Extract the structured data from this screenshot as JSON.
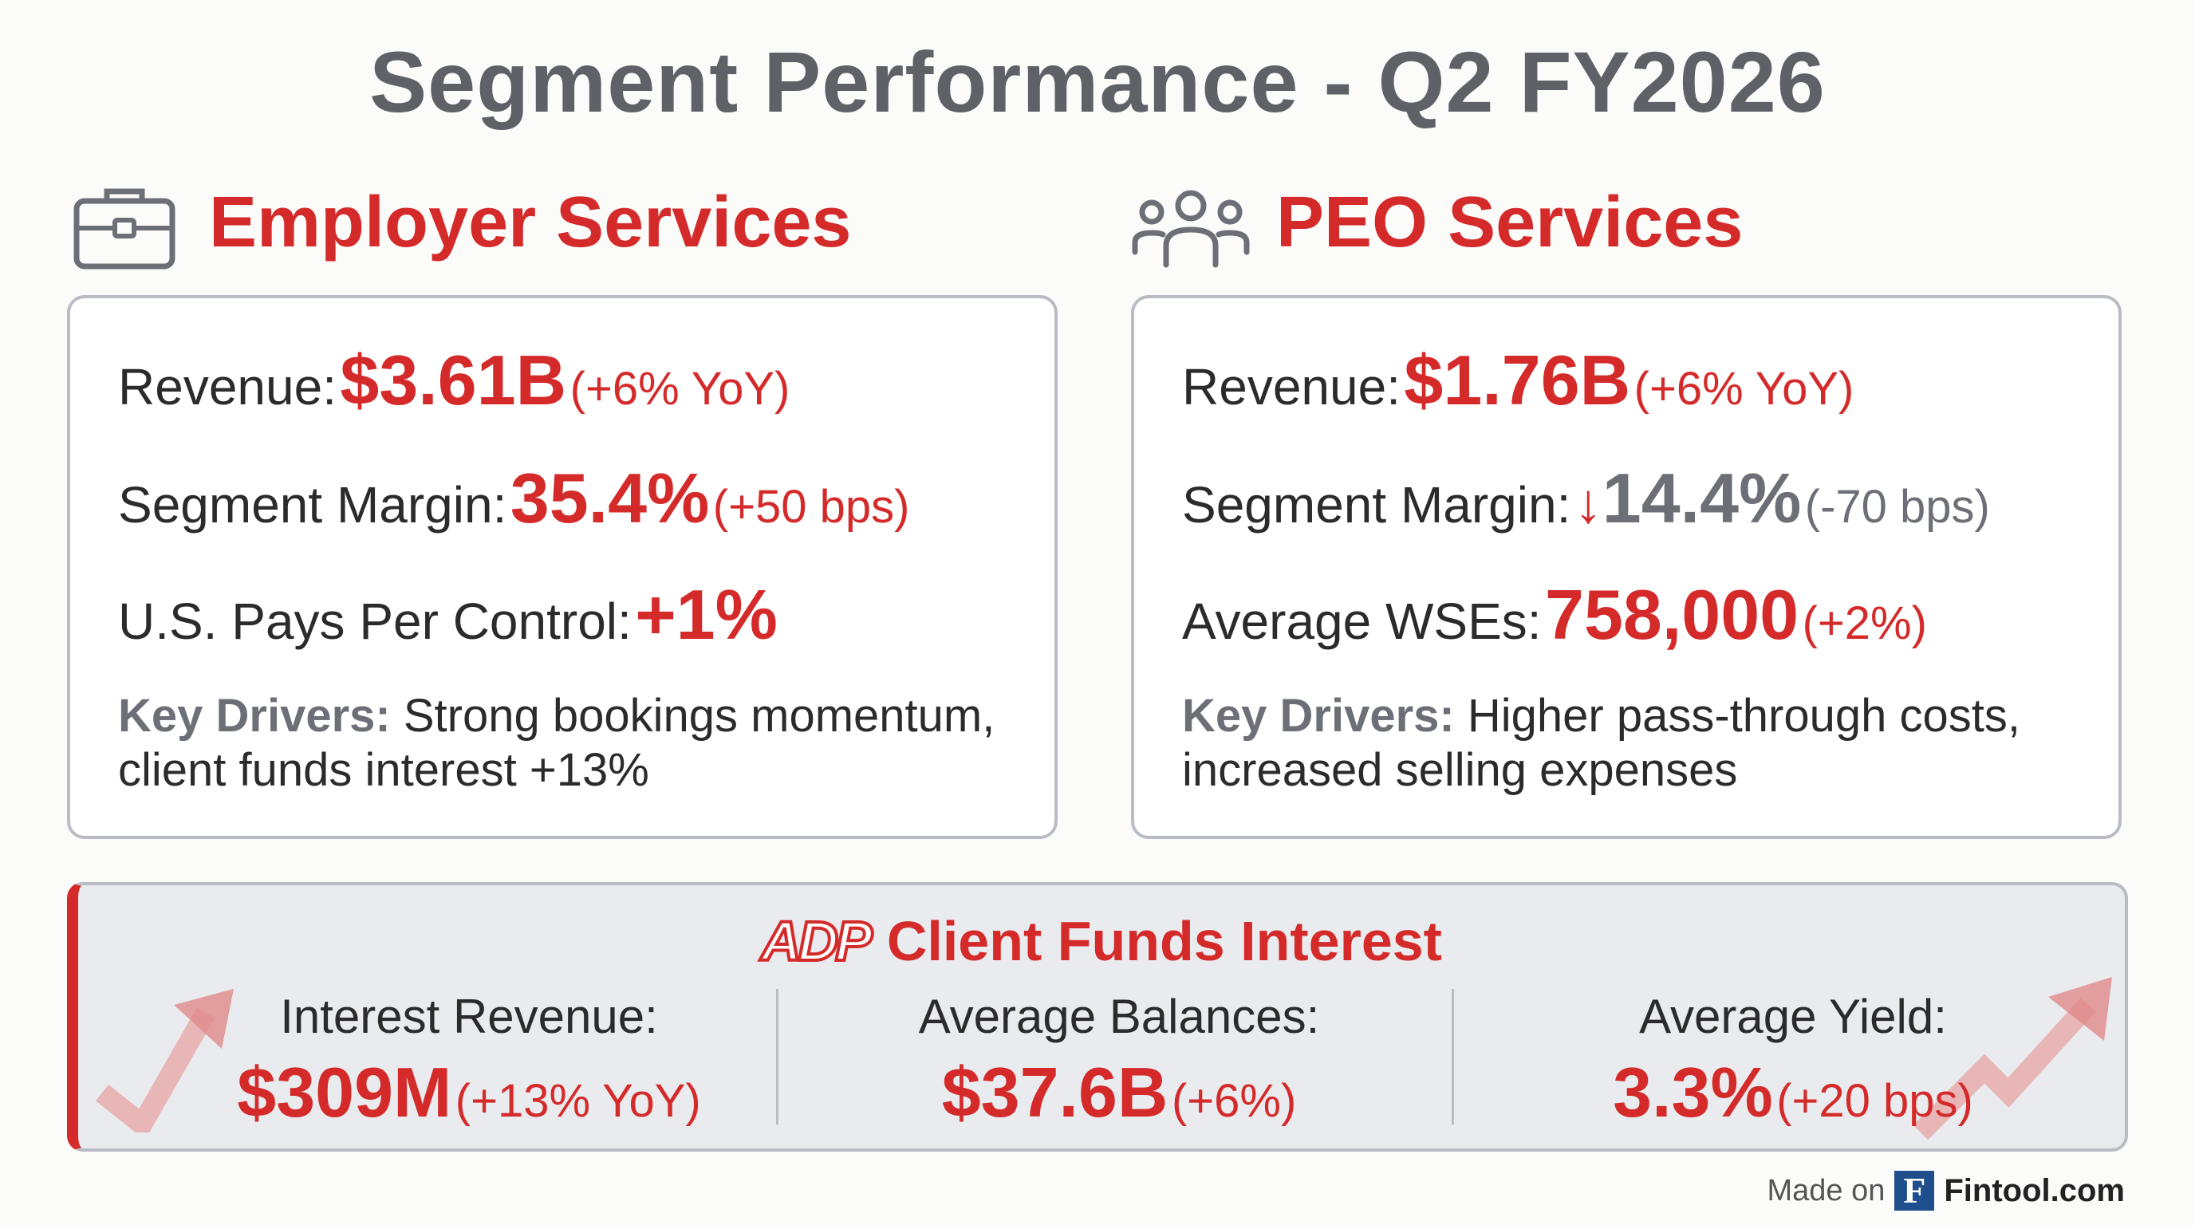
{
  "title": "Segment Performance - Q2 FY2026",
  "colors": {
    "accent": "#d42a2a",
    "muted": "#6c7076",
    "panel": "#e9ebee",
    "border": "#b9bdc3"
  },
  "employer": {
    "icon": "briefcase-icon",
    "title": "Employer Services",
    "revenue": {
      "label": "Revenue:",
      "value": "$3.61B",
      "change": "(+6% YoY)"
    },
    "margin": {
      "label": "Segment Margin:",
      "value": "35.4%",
      "change": "(+50 bps)"
    },
    "pays": {
      "label": "U.S. Pays Per Control:",
      "value": "+1%"
    },
    "drivers": {
      "label": "Key Drivers:",
      "text": " Strong bookings momentum, client funds interest +13%"
    }
  },
  "peo": {
    "icon": "users-icon",
    "title": "PEO Services",
    "revenue": {
      "label": "Revenue:",
      "value": "$1.76B",
      "change": "(+6% YoY)"
    },
    "margin": {
      "label": "Segment Margin:",
      "arrow": "↓",
      "value": "14.4%",
      "change": "(-70 bps)"
    },
    "wse": {
      "label": "Average WSEs:",
      "value": "758,000",
      "change": "(+2%)"
    },
    "drivers": {
      "label": "Key Drivers:",
      "text": " Higher pass-through costs, increased selling expenses"
    }
  },
  "client_funds": {
    "logo": "ADP",
    "title": "Client Funds Interest",
    "metrics": [
      {
        "label": "Interest Revenue:",
        "value": "$309M",
        "change": "(+13% YoY)"
      },
      {
        "label": "Average Balances:",
        "value": "$37.6B",
        "change": "(+6%)"
      },
      {
        "label": "Average Yield:",
        "value": "3.3%",
        "change": "(+20 bps)"
      }
    ]
  },
  "footer": {
    "prefix": "Made on",
    "logo": "F",
    "brand": "Fintool.com"
  }
}
